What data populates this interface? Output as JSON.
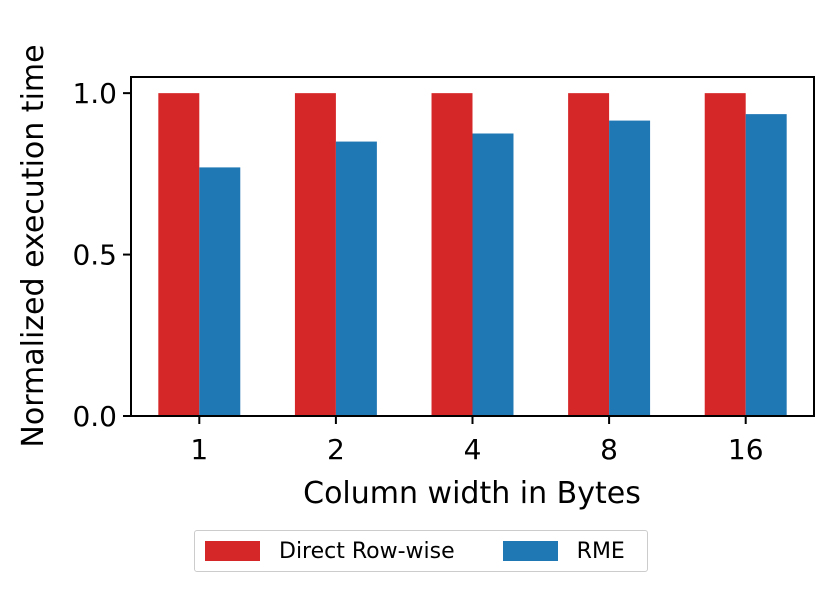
{
  "chart_data": {
    "type": "bar",
    "xlabel": "Column width in Bytes",
    "ylabel": "Normalized execution time",
    "categories": [
      "1",
      "2",
      "4",
      "8",
      "16"
    ],
    "series": [
      {
        "name": "Direct Row-wise",
        "color": "#d62728",
        "values": [
          1.0,
          1.0,
          1.0,
          1.0,
          1.0
        ]
      },
      {
        "name": "RME",
        "color": "#1f77b4",
        "values": [
          0.77,
          0.85,
          0.875,
          0.915,
          0.935
        ]
      }
    ],
    "ylim": [
      0.0,
      1.05
    ],
    "yticks": [
      "0.0",
      "0.5",
      "1.0"
    ],
    "grid": false,
    "legend_position": "bottom-center"
  }
}
